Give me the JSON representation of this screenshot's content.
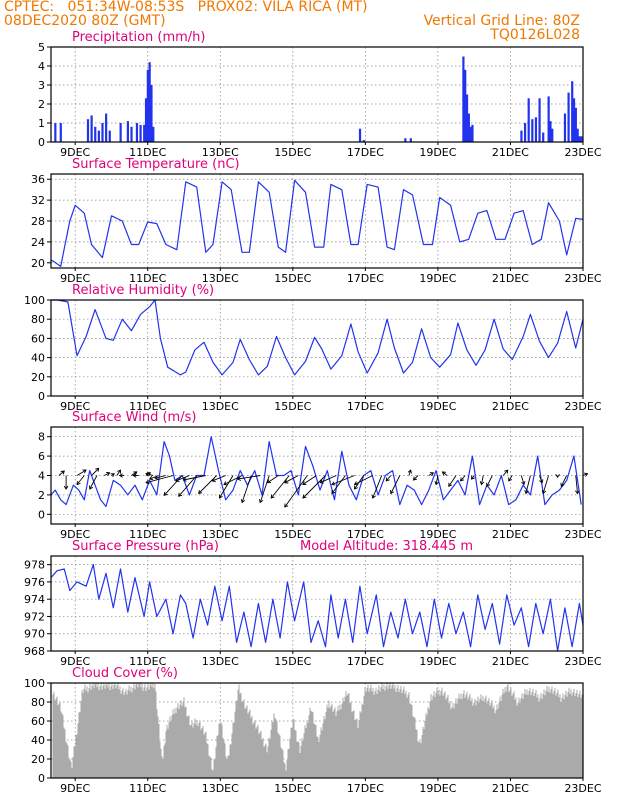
{
  "header": {
    "line1_left": "CPTEC:   051:34W-08:53S   PROX02: VILA RICA (MT)",
    "line2_left": "08DEC2020 80Z (GMT)",
    "line2_right": "Vertical Grid Line: 80Z",
    "line3_right": "TQ0126L028"
  },
  "colors": {
    "header": "#f07800",
    "title": "#e0007a",
    "series": "#2233ee",
    "cloud": "#aaaaaa",
    "arrow": "#000000"
  },
  "x_axis": {
    "ticks": [
      "9DEC",
      "11DEC",
      "13DEC",
      "15DEC",
      "17DEC",
      "19DEC",
      "21DEC",
      "23DEC"
    ],
    "range_days": [
      8.333,
      23.0
    ]
  },
  "chart_data": [
    {
      "id": "precip",
      "type": "bar",
      "title": "Precipitation (mm/h)",
      "ylim": [
        0,
        5
      ],
      "yticks": [
        0,
        1,
        2,
        3,
        4,
        5
      ],
      "x": [
        8.45,
        8.6,
        9.35,
        9.45,
        9.55,
        9.65,
        9.75,
        9.85,
        9.95,
        10.25,
        10.45,
        10.55,
        10.7,
        10.8,
        10.9,
        10.95,
        11.0,
        11.05,
        11.1,
        11.15,
        16.85,
        16.95,
        18.1,
        18.25,
        19.7,
        19.75,
        19.8,
        19.85,
        19.9,
        19.95,
        21.3,
        21.4,
        21.5,
        21.6,
        21.7,
        21.8,
        21.9,
        22.05,
        22.1,
        22.15,
        22.5,
        22.6,
        22.7,
        22.75,
        22.8,
        22.85,
        22.9,
        22.95
      ],
      "values": [
        1.0,
        1.0,
        1.2,
        1.4,
        0.8,
        0.6,
        1.0,
        1.5,
        0.6,
        1.0,
        1.1,
        0.8,
        1.0,
        0.9,
        0.9,
        2.3,
        3.8,
        4.2,
        3.0,
        0.8,
        0.7,
        0.1,
        0.2,
        0.2,
        4.5,
        3.8,
        2.5,
        1.5,
        0.8,
        0.9,
        0.6,
        1.0,
        2.3,
        1.2,
        1.3,
        2.3,
        0.5,
        2.4,
        1.1,
        0.7,
        1.5,
        2.6,
        3.2,
        2.3,
        1.8,
        0.7,
        0.3,
        0.3
      ]
    },
    {
      "id": "temp",
      "type": "line",
      "title": "Surface Temperature (nC)",
      "ylim": [
        19,
        37
      ],
      "yticks": [
        20,
        24,
        28,
        32,
        36
      ],
      "x": [
        8.333,
        8.4,
        8.6,
        8.85,
        9.0,
        9.25,
        9.45,
        9.75,
        10.0,
        10.3,
        10.55,
        10.75,
        11.0,
        11.25,
        11.5,
        11.8,
        12.05,
        12.35,
        12.6,
        12.8,
        13.05,
        13.3,
        13.6,
        13.8,
        14.05,
        14.35,
        14.6,
        14.8,
        15.05,
        15.35,
        15.6,
        15.85,
        16.05,
        16.35,
        16.6,
        16.8,
        17.05,
        17.35,
        17.6,
        17.8,
        18.05,
        18.3,
        18.6,
        18.85,
        19.05,
        19.35,
        19.6,
        19.85,
        20.1,
        20.35,
        20.6,
        20.85,
        21.1,
        21.35,
        21.6,
        21.85,
        22.05,
        22.35,
        22.55,
        22.8,
        23.0
      ],
      "y": [
        20.5,
        20.3,
        19.3,
        28.0,
        31.0,
        29.5,
        23.5,
        21.0,
        29.0,
        28.0,
        23.5,
        23.5,
        27.8,
        27.5,
        23.5,
        22.5,
        35.5,
        34.5,
        22.0,
        23.5,
        35.5,
        34.0,
        22.0,
        22.0,
        35.5,
        33.5,
        23.0,
        22.0,
        35.8,
        33.5,
        23.0,
        23.0,
        35.0,
        34.0,
        23.5,
        23.5,
        35.0,
        34.5,
        23.0,
        22.5,
        34.0,
        33.0,
        23.5,
        23.5,
        32.5,
        31.0,
        24.0,
        24.5,
        29.5,
        30.0,
        24.5,
        24.5,
        29.5,
        30.0,
        23.5,
        24.5,
        31.5,
        28.0,
        21.5,
        28.5,
        28.3
      ]
    },
    {
      "id": "rh",
      "type": "line",
      "title": "Relative Humidity (%)",
      "ylim": [
        0,
        100
      ],
      "yticks": [
        0,
        20,
        40,
        60,
        80,
        100
      ],
      "x": [
        8.333,
        8.5,
        8.8,
        9.05,
        9.3,
        9.55,
        9.85,
        10.05,
        10.3,
        10.55,
        10.8,
        11.05,
        11.2,
        11.35,
        11.55,
        11.9,
        12.05,
        12.3,
        12.55,
        12.8,
        13.05,
        13.35,
        13.55,
        13.8,
        14.05,
        14.3,
        14.55,
        14.8,
        15.05,
        15.35,
        15.6,
        15.8,
        16.05,
        16.35,
        16.6,
        16.8,
        17.05,
        17.35,
        17.6,
        17.8,
        18.05,
        18.3,
        18.55,
        18.8,
        19.05,
        19.35,
        19.55,
        19.8,
        20.05,
        20.3,
        20.55,
        20.8,
        21.05,
        21.35,
        21.55,
        21.8,
        22.05,
        22.3,
        22.55,
        22.8,
        23.0
      ],
      "y": [
        100,
        100,
        98,
        42,
        62,
        90,
        60,
        58,
        80,
        68,
        85,
        93,
        100,
        60,
        30,
        22,
        25,
        48,
        56,
        35,
        22,
        35,
        59,
        38,
        22,
        31,
        62,
        40,
        22,
        36,
        61,
        49,
        28,
        42,
        75,
        46,
        24,
        45,
        80,
        50,
        24,
        35,
        70,
        40,
        30,
        43,
        76,
        48,
        32,
        48,
        80,
        49,
        38,
        62,
        85,
        57,
        40,
        55,
        88,
        50,
        80
      ]
    },
    {
      "id": "wind",
      "type": "line",
      "title": "Surface Wind (m/s)",
      "ylim": [
        -1,
        9
      ],
      "yticks": [
        0,
        2,
        4,
        6,
        8
      ],
      "x": [
        8.333,
        8.45,
        8.6,
        8.75,
        8.95,
        9.1,
        9.25,
        9.4,
        9.55,
        9.7,
        9.85,
        10.05,
        10.25,
        10.45,
        10.65,
        10.85,
        11.05,
        11.25,
        11.45,
        11.6,
        11.75,
        11.95,
        12.15,
        12.35,
        12.55,
        12.75,
        12.95,
        13.15,
        13.35,
        13.55,
        13.75,
        13.95,
        14.15,
        14.35,
        14.55,
        14.75,
        14.95,
        15.15,
        15.35,
        15.55,
        15.75,
        15.95,
        16.15,
        16.35,
        16.55,
        16.75,
        16.95,
        17.15,
        17.35,
        17.55,
        17.75,
        17.95,
        18.15,
        18.35,
        18.55,
        18.75,
        18.95,
        19.15,
        19.35,
        19.55,
        19.75,
        19.95,
        20.15,
        20.35,
        20.55,
        20.75,
        20.95,
        21.15,
        21.35,
        21.55,
        21.75,
        21.95,
        22.15,
        22.35,
        22.55,
        22.75,
        22.95
      ],
      "y": [
        2.0,
        2.5,
        1.5,
        1.0,
        3.0,
        2.5,
        1.5,
        4.5,
        3.0,
        1.5,
        0.8,
        3.5,
        3.0,
        2.0,
        3.0,
        1.5,
        3.5,
        2.0,
        7.5,
        6.0,
        3.5,
        4.0,
        2.0,
        4.0,
        4.0,
        8.0,
        4.5,
        1.5,
        2.5,
        4.5,
        3.0,
        4.5,
        2.0,
        7.5,
        4.0,
        4.0,
        4.5,
        2.0,
        7.0,
        5.0,
        2.5,
        4.5,
        1.5,
        6.5,
        3.0,
        1.5,
        4.0,
        4.5,
        2.0,
        4.0,
        4.5,
        1.0,
        3.0,
        2.5,
        1.0,
        2.5,
        4.5,
        1.5,
        2.5,
        3.5,
        2.0,
        6.0,
        1.0,
        3.0,
        2.0,
        4.0,
        1.0,
        1.5,
        3.0,
        2.0,
        6.0,
        1.0,
        2.0,
        2.5,
        3.5,
        6.0,
        1.0
      ]
    },
    {
      "id": "pressure",
      "type": "line",
      "title": "Surface Pressure (hPa)",
      "annotation": "Model Altitude: 318.445 m",
      "ylim": [
        968,
        979
      ],
      "yticks": [
        968,
        970,
        972,
        974,
        976,
        978
      ],
      "x": [
        8.333,
        8.5,
        8.7,
        8.85,
        9.05,
        9.3,
        9.5,
        9.65,
        9.85,
        10.05,
        10.25,
        10.45,
        10.65,
        10.9,
        11.05,
        11.25,
        11.5,
        11.7,
        11.9,
        12.05,
        12.25,
        12.45,
        12.65,
        12.85,
        13.05,
        13.25,
        13.45,
        13.65,
        13.85,
        14.05,
        14.25,
        14.45,
        14.65,
        14.85,
        15.05,
        15.3,
        15.5,
        15.7,
        15.9,
        16.05,
        16.25,
        16.45,
        16.65,
        16.85,
        17.05,
        17.3,
        17.5,
        17.7,
        17.9,
        18.1,
        18.3,
        18.5,
        18.7,
        18.9,
        19.1,
        19.3,
        19.5,
        19.7,
        19.9,
        20.1,
        20.3,
        20.5,
        20.7,
        20.9,
        21.1,
        21.3,
        21.5,
        21.7,
        21.9,
        22.1,
        22.3,
        22.5,
        22.7,
        22.9,
        23.0
      ],
      "y": [
        976.5,
        977.3,
        977.5,
        975.0,
        976.0,
        975.5,
        978.0,
        974.0,
        977.0,
        973.0,
        977.5,
        972.5,
        976.5,
        972.0,
        976.0,
        972.0,
        974.0,
        970.0,
        974.5,
        973.5,
        969.5,
        974.0,
        971.0,
        975.5,
        971.5,
        975.5,
        969.0,
        972.5,
        968.5,
        973.5,
        969.0,
        974.0,
        969.5,
        976.0,
        971.5,
        976.0,
        969.0,
        971.5,
        968.5,
        974.5,
        969.5,
        974.0,
        969.0,
        975.5,
        970.0,
        974.5,
        968.5,
        972.5,
        969.5,
        974.0,
        970.0,
        972.5,
        968.5,
        974.0,
        969.5,
        973.5,
        970.0,
        972.5,
        968.5,
        974.5,
        970.5,
        973.5,
        968.8,
        974.5,
        971.0,
        973.0,
        968.5,
        973.5,
        970.0,
        974.0,
        968.0,
        973.0,
        968.5,
        973.5,
        971.0
      ]
    },
    {
      "id": "cloud",
      "type": "area",
      "title": "Cloud Cover (%)",
      "ylim": [
        0,
        100
      ],
      "yticks": [
        0,
        20,
        40,
        60,
        80,
        100
      ],
      "x": [
        8.4,
        8.6,
        8.9,
        9.2,
        9.5,
        9.8,
        10.1,
        10.4,
        10.7,
        11.0,
        11.2,
        11.4,
        11.5,
        11.6,
        11.8,
        12.0,
        12.2,
        12.4,
        12.6,
        12.8,
        13.0,
        13.2,
        13.5,
        13.7,
        14.0,
        14.3,
        14.5,
        14.8,
        15.0,
        15.2,
        15.5,
        15.7,
        16.0,
        16.2,
        16.5,
        16.8,
        17.0,
        17.3,
        17.6,
        17.9,
        18.2,
        18.5,
        18.8,
        19.1,
        19.4,
        19.7,
        20.0,
        20.3,
        20.6,
        20.9,
        21.2,
        21.5,
        21.8,
        22.1,
        22.4,
        22.7,
        23.0
      ],
      "values": [
        90,
        75,
        10,
        92,
        98,
        97,
        98,
        90,
        99,
        95,
        100,
        15,
        50,
        60,
        75,
        80,
        55,
        60,
        45,
        8,
        65,
        15,
        95,
        75,
        55,
        30,
        70,
        10,
        62,
        30,
        75,
        40,
        80,
        68,
        90,
        55,
        95,
        92,
        98,
        95,
        88,
        35,
        85,
        93,
        75,
        90,
        80,
        85,
        72,
        98,
        80,
        93,
        85,
        95,
        85,
        92,
        85
      ]
    }
  ],
  "wind_vectors": {
    "note_units": "m/s",
    "x": [
      8.55,
      8.75,
      9.05,
      9.25,
      9.45,
      9.6,
      9.8,
      10.0,
      10.15,
      10.35,
      10.55,
      10.75,
      10.95,
      11.15,
      11.3,
      11.5,
      11.7,
      11.95,
      12.15,
      12.35,
      12.6,
      12.9,
      13.15,
      13.35,
      13.6,
      13.85,
      14.1,
      14.35,
      14.6,
      14.9,
      15.15,
      15.4,
      15.65,
      15.9,
      16.2,
      16.45,
      16.7,
      16.95,
      17.2,
      17.45,
      17.7,
      17.95,
      18.2,
      18.45,
      18.75,
      19.0,
      19.25,
      19.5,
      19.75,
      20.0,
      20.25,
      20.5,
      20.8,
      21.05,
      21.3,
      21.55,
      21.8,
      22.05,
      22.3,
      22.55,
      22.8,
      23.0
    ],
    "u": [
      0.6,
      0.0,
      1.0,
      -0.8,
      0.8,
      -0.8,
      0.6,
      0.3,
      0.4,
      -0.5,
      0.6,
      -0.6,
      0.5,
      -0.8,
      -1.0,
      -1.2,
      -3.0,
      -2.0,
      -1.5,
      -2.0,
      -2.5,
      -2.0,
      -1.5,
      -1.5,
      -2.0,
      -1.0,
      -2.5,
      -1.0,
      -1.2,
      -2.0,
      -1.5,
      -2.5,
      -1.5,
      -2.5,
      -1.8,
      -1.5,
      -2.5,
      -1.0,
      -2.0,
      -1.0,
      -0.5,
      -1.0,
      0.2,
      -0.5,
      0.5,
      -0.2,
      -0.5,
      -0.8,
      -0.5,
      -0.3,
      -0.2,
      -0.6,
      0.5,
      -0.4,
      0.3,
      -0.5,
      0.3,
      -0.6,
      0.0,
      -0.6,
      0.2,
      0.5
    ],
    "v": [
      0.5,
      -1.5,
      0.6,
      -1.0,
      0.8,
      -1.5,
      0.3,
      0.2,
      0.6,
      0.0,
      0.4,
      0.0,
      0.3,
      0.2,
      -0.4,
      -0.3,
      -0.8,
      -2.2,
      -0.6,
      -2.3,
      -0.5,
      -2.0,
      -0.6,
      -2.5,
      -1.0,
      -3.0,
      -0.4,
      -3.0,
      -0.8,
      -2.5,
      -0.8,
      -3.5,
      -1.0,
      -2.5,
      -0.8,
      -2.0,
      -1.0,
      -1.5,
      -1.0,
      -2.5,
      -0.6,
      -2.0,
      0.6,
      -0.5,
      0.3,
      -1.0,
      0.4,
      -1.2,
      -0.6,
      -0.4,
      -1.0,
      -1.2,
      0.6,
      -0.6,
      -1.0,
      -2.0,
      -0.8,
      -2.0,
      -0.2,
      -1.2,
      -2.0,
      0.2
    ]
  }
}
